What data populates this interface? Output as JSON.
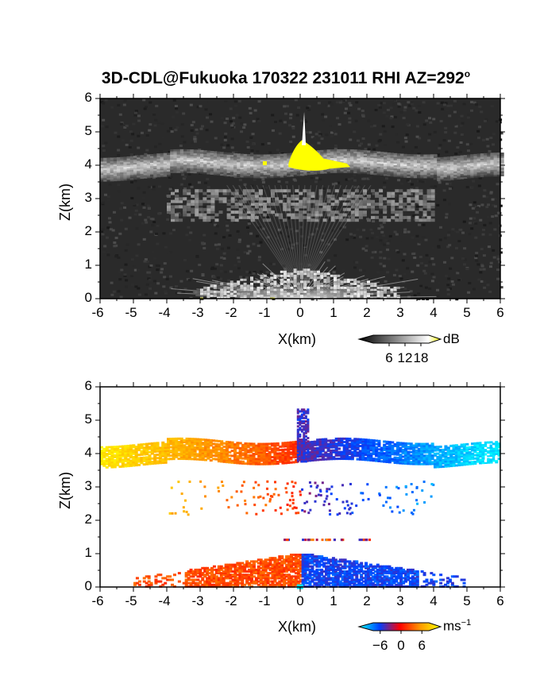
{
  "title": {
    "main": "3D-CDL@Fukuoka 170322 231011 RHI AZ=292",
    "degree_mark": "o"
  },
  "chart_data": [
    {
      "type": "heatmap",
      "panel": "top",
      "quantity": "backscatter intensity",
      "xlabel": "X(km)",
      "ylabel": "Z(km)",
      "xlim": [
        -6,
        6
      ],
      "ylim": [
        0,
        6
      ],
      "x_ticks": [
        "-6",
        "-5",
        "-4",
        "-3",
        "-2",
        "-1",
        "0",
        "1",
        "2",
        "3",
        "4",
        "5",
        "6"
      ],
      "y_ticks": [
        "0",
        "1",
        "2",
        "3",
        "4",
        "5",
        "6"
      ],
      "colorbar": {
        "unit": "dB",
        "tick_labels": [
          "6",
          "12",
          "18"
        ],
        "ticks": [
          6,
          12,
          18
        ],
        "range": [
          0,
          21
        ]
      },
      "features": [
        {
          "name": "cloud layer",
          "z_range": [
            3.7,
            4.3
          ],
          "x_range": [
            -6,
            6
          ]
        },
        {
          "name": "bright core",
          "x_range": [
            -0.35,
            1.6
          ],
          "z_range": [
            3.9,
            4.8
          ]
        },
        {
          "name": "vertical spike",
          "x": 0.1,
          "z_range": [
            4.5,
            5.6
          ]
        },
        {
          "name": "near-ground echo",
          "x_range": [
            -3,
            3
          ],
          "z_range": [
            0,
            1
          ]
        }
      ]
    },
    {
      "type": "heatmap",
      "panel": "bottom",
      "quantity": "Doppler velocity",
      "xlabel": "X(km)",
      "ylabel": "Z(km)",
      "xlim": [
        -6,
        6
      ],
      "ylim": [
        0,
        6
      ],
      "x_ticks": [
        "-6",
        "-5",
        "-4",
        "-3",
        "-2",
        "-1",
        "0",
        "1",
        "2",
        "3",
        "4",
        "5",
        "6"
      ],
      "y_ticks": [
        "0",
        "1",
        "2",
        "3",
        "4",
        "5",
        "6"
      ],
      "colorbar": {
        "unit": "ms",
        "unit_exponent": "−1",
        "tick_labels": [
          "−6",
          "0",
          "6"
        ],
        "ticks": [
          -6,
          0,
          6
        ],
        "range": [
          -8,
          8
        ]
      },
      "colors": {
        "positive": "#ffd21e",
        "zero": "#ff2a00",
        "negative": "#0050ff",
        "far_negative": "#00e6ff"
      }
    }
  ]
}
